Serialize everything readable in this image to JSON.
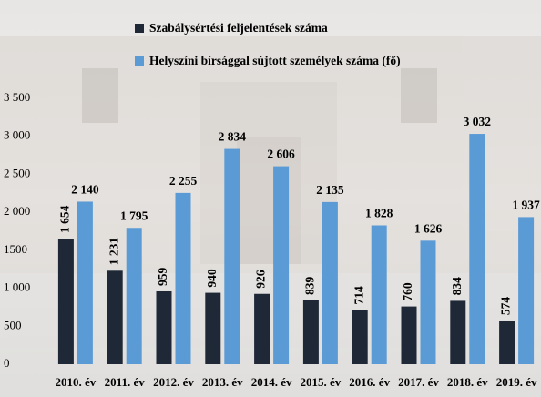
{
  "chart_data": {
    "type": "bar",
    "categories": [
      "2010. év",
      "2011. év",
      "2012. év",
      "2013. év",
      "2014. év",
      "2015. év",
      "2016. év",
      "2017. év",
      "2018. év",
      "2019. év"
    ],
    "series": [
      {
        "name": "Szabálysértési feljelentések száma",
        "color": "#1e2836",
        "values": [
          1654,
          1231,
          959,
          940,
          926,
          839,
          714,
          760,
          834,
          574
        ],
        "value_labels": [
          "1 654",
          "1 231",
          "959",
          "940",
          "926",
          "839",
          "714",
          "760",
          "834",
          "574"
        ]
      },
      {
        "name": "Helyszíni bírsággal sújtott személyek száma (fő)",
        "color": "#5b9bd5",
        "values": [
          2140,
          1795,
          2255,
          2834,
          2606,
          2135,
          1828,
          1626,
          3032,
          1937
        ],
        "value_labels": [
          "2 140",
          "1 795",
          "2 255",
          "2 834",
          "2 606",
          "2 135",
          "1 828",
          "1 626",
          "3 032",
          "1 937"
        ]
      }
    ],
    "ylim": [
      0,
      3500
    ],
    "yticks": [
      0,
      500,
      {
        "value": 1000,
        "label": "1 000"
      },
      {
        "value": 1500,
        "label": "1500"
      },
      {
        "value": 2000,
        "label": "2 000"
      },
      {
        "value": 2500,
        "label": "2 500"
      },
      {
        "value": 3000,
        "label": "3 000"
      },
      {
        "value": 3500,
        "label": "3 500"
      }
    ]
  }
}
